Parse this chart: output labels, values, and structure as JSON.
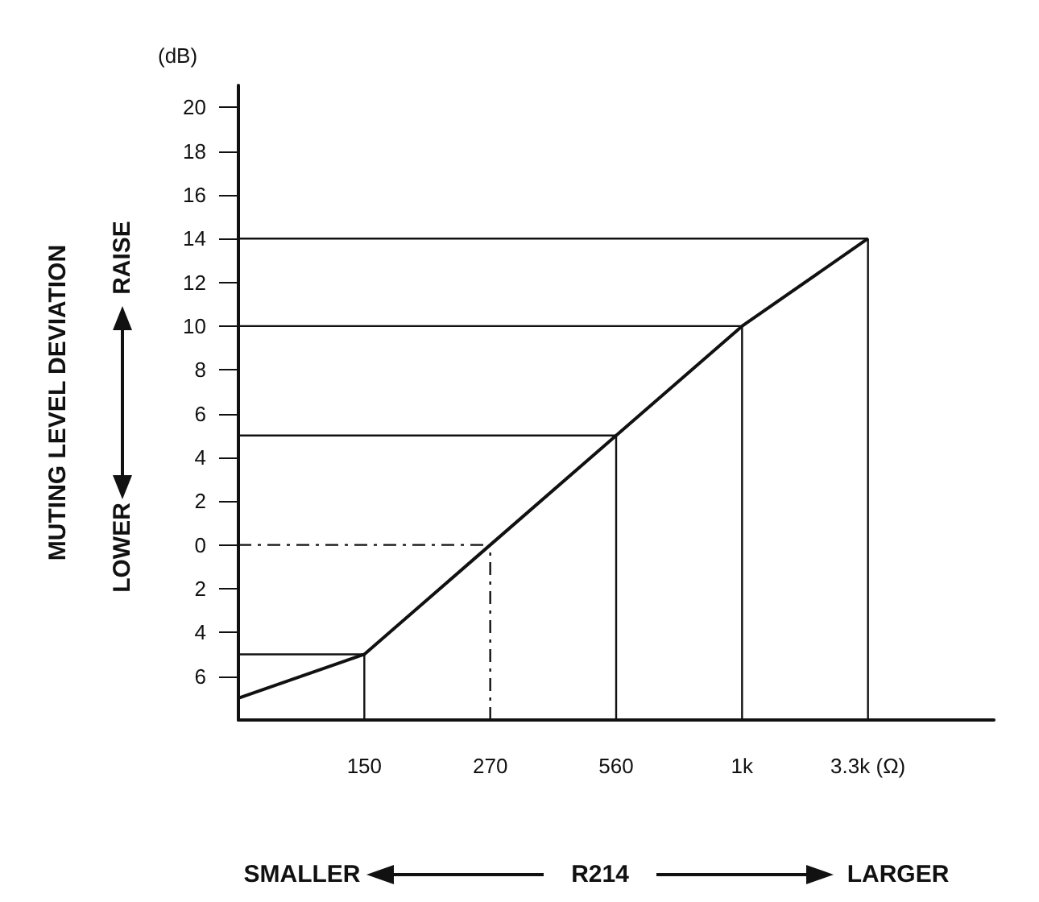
{
  "chart_data": {
    "type": "line",
    "ylabel": "MUTING LEVEL DEVIATION",
    "xlabel": "R214",
    "annotations": [
      "(dB)",
      "RAISE",
      "LOWER",
      "SMALLER",
      "LARGER"
    ],
    "categories": [
      null,
      "150",
      "270",
      "560",
      "1k",
      "3.3k (Ω)",
      null
    ],
    "series": [
      {
        "color": "#111111",
        "values": [
          -7,
          -5,
          0,
          5,
          10,
          14,
          null
        ]
      }
    ],
    "ylim": [
      -8,
      21
    ],
    "yticks": [
      {
        "value": -6,
        "label": "6"
      },
      {
        "value": -4,
        "label": "4"
      },
      {
        "value": -2,
        "label": "2"
      },
      0,
      2,
      4,
      6,
      8,
      10,
      12,
      14,
      16,
      18,
      20
    ],
    "ref_lines": [
      {
        "axis": "y",
        "value": 14,
        "label": null
      },
      {
        "axis": "y",
        "value": 10,
        "label": null
      },
      {
        "axis": "y",
        "value": 5,
        "label": null
      },
      {
        "axis": "y",
        "value": 0,
        "label": null,
        "line_style": "dashed"
      },
      {
        "axis": "y",
        "value": -5,
        "label": null
      },
      {
        "axis": "x",
        "value": "150",
        "label": null
      },
      {
        "axis": "x",
        "value": "270",
        "label": null,
        "line_style": "dashed"
      },
      {
        "axis": "x",
        "value": "560",
        "label": null
      },
      {
        "axis": "x",
        "value": "1k",
        "label": null
      },
      {
        "axis": "x",
        "value": "3.3k (Ω)",
        "label": null
      }
    ],
    "grid": false,
    "marker": "none",
    "line_style": "solid"
  }
}
